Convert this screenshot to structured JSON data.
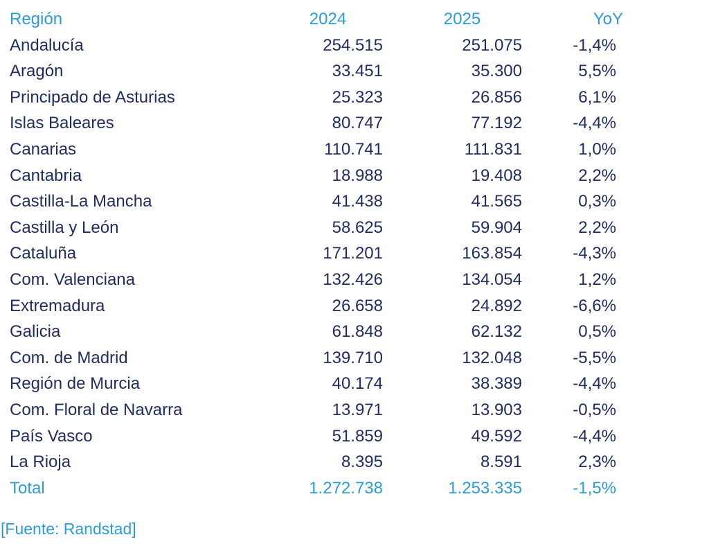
{
  "colors": {
    "accent": "#2d9ad9",
    "text": "#1f2c5f",
    "background": "#ffffff"
  },
  "source_note": "[Fuente: Randstad]",
  "chart_data": {
    "type": "table",
    "columns": [
      "Región",
      "2024",
      "2025",
      "YoY"
    ],
    "rows": [
      [
        "Andalucía",
        "254.515",
        "251.075",
        "-1,4%"
      ],
      [
        "Aragón",
        "33.451",
        "35.300",
        "5,5%"
      ],
      [
        "Principado de Asturias",
        "25.323",
        "26.856",
        "6,1%"
      ],
      [
        "Islas Baleares",
        "80.747",
        "77.192",
        "-4,4%"
      ],
      [
        "Canarias",
        "110.741",
        "111.831",
        "1,0%"
      ],
      [
        "Cantabria",
        "18.988",
        "19.408",
        "2,2%"
      ],
      [
        "Castilla-La Mancha",
        "41.438",
        "41.565",
        "0,3%"
      ],
      [
        "Castilla y León",
        "58.625",
        "59.904",
        "2,2%"
      ],
      [
        "Cataluña",
        "171.201",
        "163.854",
        "-4,3%"
      ],
      [
        "Com. Valenciana",
        "132.426",
        "134.054",
        "1,2%"
      ],
      [
        "Extremadura",
        "26.658",
        "24.892",
        "-6,6%"
      ],
      [
        "Galicia",
        "61.848",
        "62.132",
        "0,5%"
      ],
      [
        "Com. de Madrid",
        "139.710",
        "132.048",
        "-5,5%"
      ],
      [
        "Región de Murcia",
        "40.174",
        "38.389",
        "-4,4%"
      ],
      [
        "Com. Floral de Navarra",
        "13.971",
        "13.903",
        "-0,5%"
      ],
      [
        "País Vasco",
        "51.859",
        "49.592",
        "-4,4%"
      ],
      [
        "La Rioja",
        "8.395",
        "8.591",
        "2,3%"
      ]
    ],
    "total_row": [
      "Total",
      "1.272.738",
      "1.253.335",
      "-1,5%"
    ],
    "source_label": "[Fuente: Randstad]",
    "legend_position": "none",
    "grid": false
  }
}
